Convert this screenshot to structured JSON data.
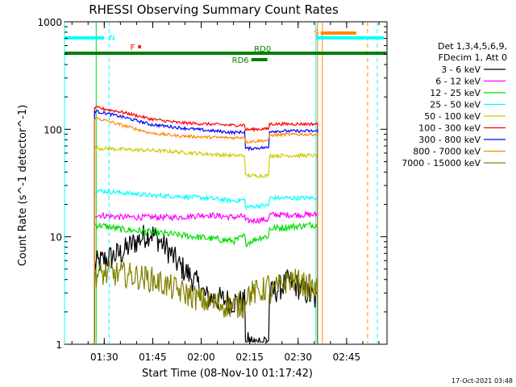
{
  "chart_data": {
    "type": "line",
    "title": "RHESSI Observing Summary Count Rates",
    "ylabel": "Count Rate (s^-1 detector^-1)",
    "xlabel": "Start Time (08-Nov-10 01:17:42)",
    "yscale": "log",
    "ylim": [
      1,
      1000
    ],
    "y_ticks": [
      {
        "value": 1,
        "label": "1"
      },
      {
        "value": 10,
        "label": "10"
      },
      {
        "value": 100,
        "label": "100"
      },
      {
        "value": 1000,
        "label": "1000"
      }
    ],
    "x_ticks": [
      "01:30",
      "01:45",
      "02:00",
      "02:15",
      "02:30",
      "02:45"
    ],
    "xlim": [
      "01:17:42",
      "02:57:30"
    ],
    "timestamp": "17-Oct-2021 03:48",
    "legend_header": [
      "Det 1,3,4,5,6,9,",
      "FDecim 1, Att 0"
    ],
    "series": [
      {
        "name": "3 - 6 keV",
        "color": "#000000",
        "base": 5.5,
        "trend": [
          1.0,
          1.3,
          2.0,
          1.0,
          0.5,
          0.45,
          0.45,
          0.7,
          0.45
        ],
        "noise": 0.35
      },
      {
        "name": "6 - 12 keV",
        "color": "#ff00ff",
        "base": 16,
        "trend": [
          1.0,
          0.95,
          0.95,
          0.95,
          1.0,
          0.95,
          1.0,
          1.0,
          1.0
        ],
        "noise": 0.08
      },
      {
        "name": "12 - 25 keV",
        "color": "#00dd00",
        "base": 13,
        "trend": [
          1.0,
          0.9,
          0.85,
          0.8,
          0.75,
          0.7,
          0.9,
          0.95,
          1.0
        ],
        "noise": 0.09
      },
      {
        "name": "25 - 50 keV",
        "color": "#00ffff",
        "base": 27,
        "trend": [
          1.0,
          0.95,
          0.9,
          0.88,
          0.85,
          0.8,
          0.85,
          0.85,
          0.85
        ],
        "noise": 0.06
      },
      {
        "name": "50 - 100 keV",
        "color": "#cccc00",
        "base": 67,
        "trend": [
          1.0,
          0.97,
          0.95,
          0.92,
          0.88,
          0.85,
          0.85,
          0.85,
          0.85
        ],
        "noise": 0.05
      },
      {
        "name": "100 - 300 keV",
        "color": "#ff0000",
        "base": 160,
        "trend": [
          1.0,
          0.9,
          0.78,
          0.72,
          0.7,
          0.68,
          0.7,
          0.7,
          0.7
        ],
        "noise": 0.04
      },
      {
        "name": "300 - 800 keV",
        "color": "#0000ff",
        "base": 148,
        "trend": [
          1.0,
          0.88,
          0.75,
          0.7,
          0.66,
          0.63,
          0.65,
          0.65,
          0.65
        ],
        "noise": 0.04
      },
      {
        "name": "800 - 7000 keV",
        "color": "#ff8800",
        "base": 128,
        "trend": [
          1.0,
          0.85,
          0.72,
          0.68,
          0.66,
          0.65,
          0.68,
          0.7,
          0.7
        ],
        "noise": 0.04
      },
      {
        "name": "7000 - 15000 keV",
        "color": "#808000",
        "base": 4.5,
        "trend": [
          1.0,
          1.0,
          0.9,
          0.7,
          0.55,
          0.5,
          0.55,
          0.9,
          0.7
        ],
        "noise": 0.35
      }
    ],
    "gap_segment": {
      "start": "02:13:30",
      "end": "02:21:00",
      "multipliers": [
        0.4,
        0.9,
        0.85,
        0.85,
        0.65,
        0.9,
        0.7,
        0.9,
        1.25
      ]
    },
    "data_window": {
      "start": "01:27:00",
      "end": "02:36:00"
    },
    "flag_bars": [
      {
        "label": "N",
        "color": "#00ffff",
        "segments": [
          [
            "01:17:42",
            "01:30:00"
          ],
          [
            "02:35:30",
            "02:56:30"
          ]
        ]
      },
      {
        "label": "S",
        "color": "#ff8800",
        "segments": [
          [
            "02:37:00",
            "02:48:00"
          ]
        ]
      },
      {
        "label": "F",
        "color": "#ff0000",
        "segments": [
          [
            "01:40:30",
            "01:41:20"
          ]
        ]
      },
      {
        "label": "RD0",
        "color": "#008000",
        "segments": [
          [
            "01:17:42",
            "02:57:30"
          ]
        ]
      },
      {
        "label": "RD6",
        "color": "#008000",
        "segments": [
          [
            "02:15:30",
            "02:20:30"
          ]
        ]
      }
    ],
    "vertical_markers": [
      {
        "time": "01:17:42",
        "color": "#00ffff",
        "style": "solid"
      },
      {
        "time": "01:31:30",
        "color": "#00ffff",
        "style": "dashed"
      },
      {
        "time": "02:35:30",
        "color": "#00ffff",
        "style": "solid"
      },
      {
        "time": "02:54:30",
        "color": "#00ffff",
        "style": "dashed"
      },
      {
        "time": "02:36:00",
        "color": "#ff8800",
        "style": "solid"
      },
      {
        "time": "02:51:30",
        "color": "#ff8800",
        "style": "dashed"
      },
      {
        "time": "01:27:30",
        "color": "#00dd00",
        "style": "solid"
      },
      {
        "time": "02:37:30",
        "color": "#ff8800",
        "style": "solid"
      }
    ]
  }
}
